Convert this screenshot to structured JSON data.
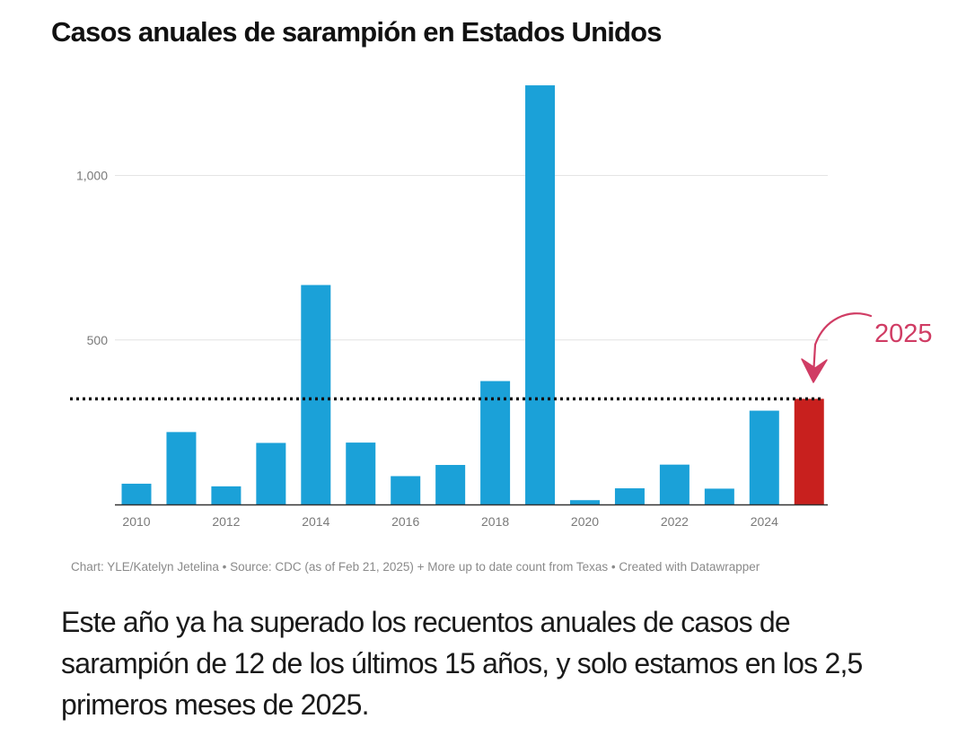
{
  "title": "Casos anuales de sarampión en Estados Unidos",
  "source": "Chart: YLE/Katelyn Jetelina • Source: CDC (as of Feb 21, 2025) + More up to date count from Texas • Created with Datawrapper",
  "caption": "Este año ya ha superado los recuentos anuales de casos de sarampión de 12 de los últimos 15 años, y solo estamos en los 2,5 primeros meses de 2025.",
  "colors": {
    "bar": "#1ba1d8",
    "highlight": "#c8201e",
    "annotation": "#d03c64",
    "grid": "#e4e4e4",
    "axis_text": "#7a7a7a"
  },
  "chart_data": {
    "type": "bar",
    "categories": [
      "2010",
      "2011",
      "2012",
      "2013",
      "2014",
      "2015",
      "2016",
      "2017",
      "2018",
      "2019",
      "2020",
      "2021",
      "2022",
      "2023",
      "2024",
      "2025"
    ],
    "values": [
      63,
      220,
      55,
      187,
      667,
      188,
      86,
      120,
      375,
      1274,
      13,
      49,
      121,
      48,
      285,
      321
    ],
    "highlight_category": "2025",
    "x_tick_labels": [
      "2010",
      "2012",
      "2014",
      "2016",
      "2018",
      "2020",
      "2022",
      "2024"
    ],
    "y_ticks": [
      500,
      1000
    ],
    "y_tick_labels": [
      "500",
      "1,000"
    ],
    "ylim": [
      0,
      1274
    ],
    "reference_line": {
      "value": 321,
      "style": "dotted"
    },
    "annotation": {
      "text": "2025",
      "target": "2025"
    },
    "grid": true,
    "xlabel": "",
    "ylabel": ""
  }
}
